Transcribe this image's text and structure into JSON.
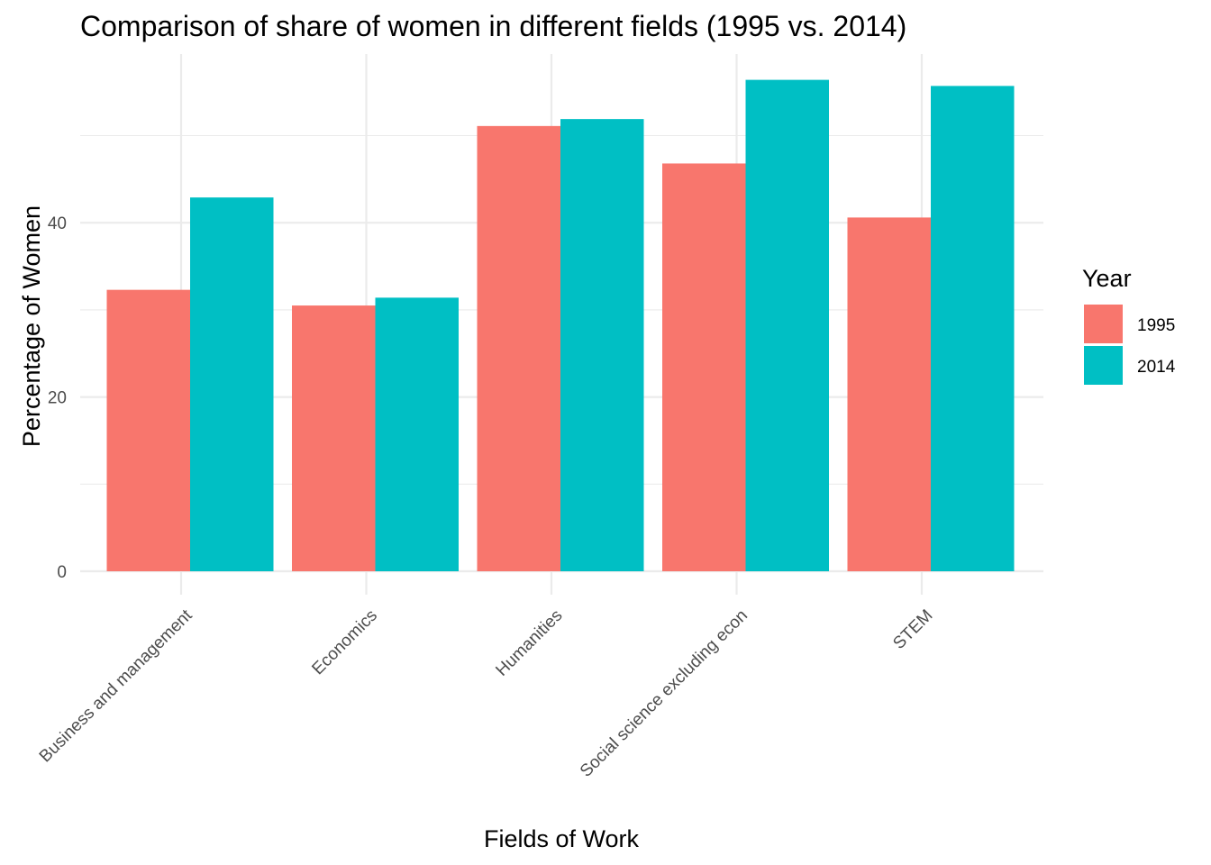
{
  "chart_data": {
    "type": "bar",
    "title": "Comparison of share of women in different fields (1995 vs. 2014)",
    "xlabel": "Fields of Work",
    "ylabel": "Percentage of Women",
    "categories": [
      "Business and management",
      "Economics",
      "Humanities",
      "Social science excluding econ",
      "STEM"
    ],
    "series": [
      {
        "name": "1995",
        "values": [
          32.3,
          30.5,
          51.1,
          46.8,
          40.6
        ]
      },
      {
        "name": "2014",
        "values": [
          42.9,
          31.4,
          51.9,
          56.4,
          55.7
        ]
      }
    ],
    "ylim": [
      0,
      60
    ],
    "yticks": [
      0,
      20,
      40
    ],
    "grid": true,
    "legend": {
      "title": "Year",
      "position": "right"
    },
    "colors": {
      "1995": "#F8766D",
      "2014": "#00BFC4"
    }
  }
}
